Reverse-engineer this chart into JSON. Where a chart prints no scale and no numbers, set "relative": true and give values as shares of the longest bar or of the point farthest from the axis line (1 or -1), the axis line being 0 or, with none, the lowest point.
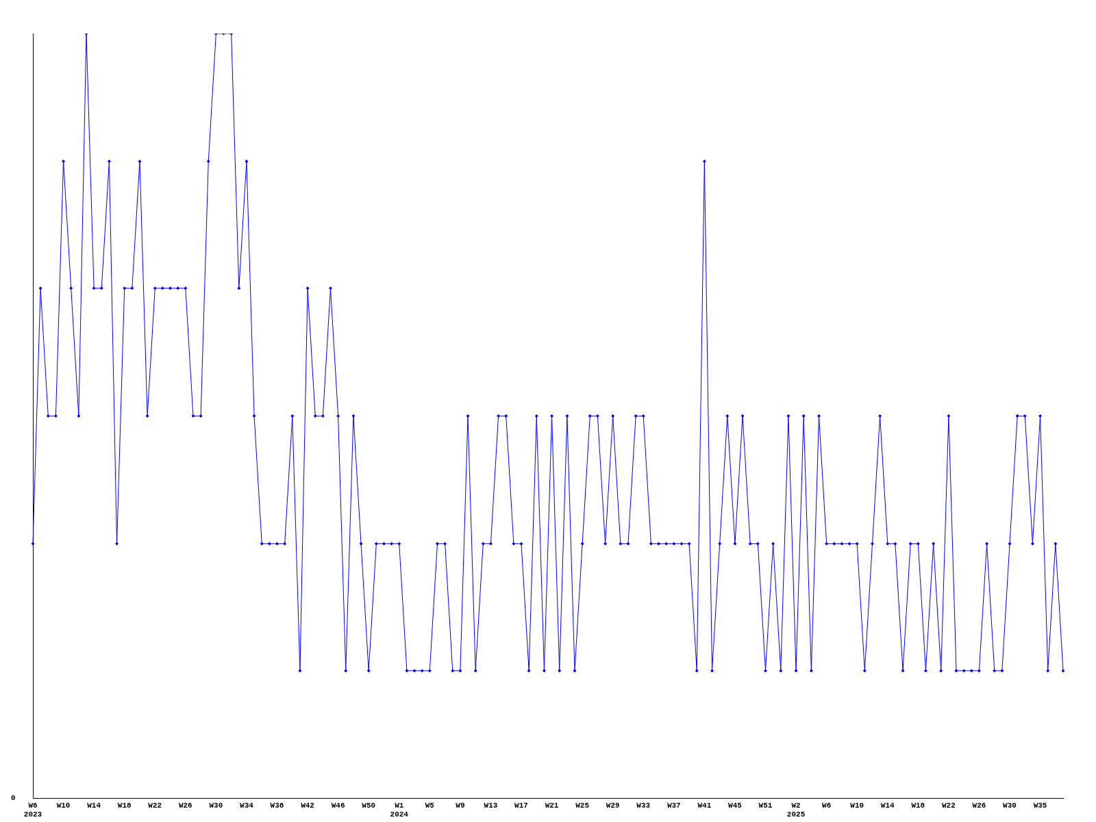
{
  "chart_data": {
    "type": "line",
    "relative": true,
    "annotations": [
      "0"
    ],
    "grid": false,
    "legend": false,
    "marker": "diamond",
    "line_style": "solid",
    "categories": [
      "W6\n2023",
      null,
      null,
      null,
      "W10",
      null,
      null,
      null,
      "W14",
      null,
      null,
      null,
      "W18",
      null,
      null,
      null,
      "W22",
      null,
      null,
      null,
      "W26",
      null,
      null,
      null,
      "W30",
      null,
      null,
      null,
      "W34",
      null,
      null,
      null,
      "W38",
      null,
      null,
      null,
      "W42",
      null,
      null,
      null,
      "W46",
      null,
      null,
      null,
      "W50",
      null,
      null,
      null,
      "W1\n2024",
      null,
      null,
      null,
      "W5",
      null,
      null,
      null,
      "W9",
      null,
      null,
      null,
      "W13",
      null,
      null,
      null,
      "W17",
      null,
      null,
      null,
      "W21",
      null,
      null,
      null,
      "W25",
      null,
      null,
      null,
      "W29",
      null,
      null,
      null,
      "W33",
      null,
      null,
      null,
      "W37",
      null,
      null,
      null,
      "W41",
      null,
      null,
      null,
      "W45",
      null,
      null,
      null,
      "W51",
      null,
      null,
      null,
      "W2\n2025",
      null,
      null,
      null,
      "W6",
      null,
      null,
      null,
      "W10",
      null,
      null,
      null,
      "W14",
      null,
      null,
      null,
      "W18",
      null,
      null,
      null,
      "W22",
      null,
      null,
      null,
      "W26",
      null,
      null,
      null,
      "W30",
      null,
      null,
      null,
      "W35",
      null,
      null,
      null
    ],
    "series": [
      {
        "color": "#0000ff",
        "values": [
          0.333,
          0.667,
          0.5,
          0.5,
          0.833,
          0.667,
          0.5,
          1,
          0.667,
          0.667,
          0.833,
          0.333,
          0.667,
          0.667,
          0.833,
          0.5,
          0.667,
          0.667,
          0.667,
          0.667,
          0.667,
          0.5,
          0.5,
          0.833,
          1,
          1,
          1,
          0.667,
          0.833,
          0.5,
          0.333,
          0.333,
          0.333,
          0.333,
          0.5,
          0.167,
          0.667,
          0.5,
          0.5,
          0.667,
          0.5,
          0.167,
          0.5,
          0.333,
          0.167,
          0.333,
          0.333,
          0.333,
          0.333,
          0.167,
          0.167,
          0.167,
          0.167,
          0.333,
          0.333,
          0.167,
          0.167,
          0.5,
          0.167,
          0.333,
          0.333,
          0.5,
          0.5,
          0.333,
          0.333,
          0.167,
          0.5,
          0.167,
          0.5,
          0.167,
          0.5,
          0.167,
          0.333,
          0.5,
          0.5,
          0.333,
          0.5,
          0.333,
          0.333,
          0.5,
          0.5,
          0.333,
          0.333,
          0.333,
          0.333,
          0.333,
          0.333,
          0.167,
          0.833,
          0.167,
          0.333,
          0.5,
          0.333,
          0.5,
          0.333,
          0.333,
          0.167,
          0.333,
          0.167,
          0.5,
          0.167,
          0.5,
          0.167,
          0.5,
          0.333,
          0.333,
          0.333,
          0.333,
          0.333,
          0.167,
          0.333,
          0.5,
          0.333,
          0.333,
          0.167,
          0.333,
          0.333,
          0.167,
          0.333,
          0.167,
          0.5,
          0.167,
          0.167,
          0.167,
          0.167,
          0.333,
          0.167,
          0.167,
          0.333,
          0.5,
          0.5,
          0.333,
          0.5,
          0.167,
          0.333,
          0.167
        ]
      }
    ]
  }
}
